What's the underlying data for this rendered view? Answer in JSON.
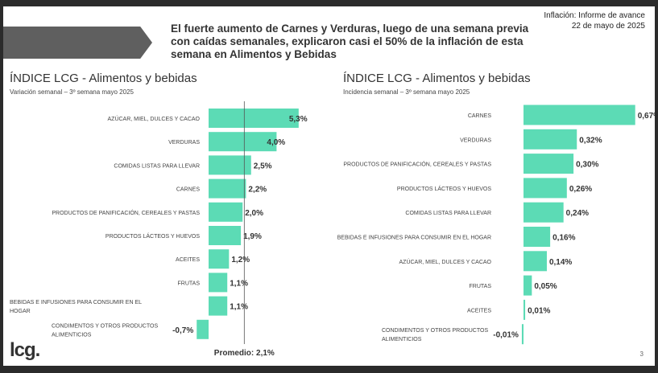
{
  "header": {
    "headline": "El fuerte aumento de Carnes y Verduras, luego de una semana previa con caídas semanales, explicaron casi el 50% de la inflación de esta semana en Alimentos y Bebidas",
    "report_title": "Inflación: Informe de avance",
    "report_date": "22 de mayo de 2025"
  },
  "footer": {
    "logo": "lcg.",
    "page": "3"
  },
  "colors": {
    "bar": "#5cdbb5",
    "arrow": "#5f5f5f",
    "frame": "#2b2b2b"
  },
  "chart_data": [
    {
      "type": "bar",
      "orientation": "horizontal",
      "title": "ÍNDICE LCG - Alimentos y bebidas",
      "subtitle": "Variación semanal – 3º semana mayo 2025",
      "categories": [
        "AZÚCAR, MIEL, DULCES Y CACAO",
        "VERDURAS",
        "COMIDAS LISTAS PARA LLEVAR",
        "CARNES",
        "PRODUCTOS DE PANIFICACIÓN, CEREALES Y PASTAS",
        "PRODUCTOS LÁCTEOS Y HUEVOS",
        "ACEITES",
        "FRUTAS",
        "BEBIDAS E INFUSIONES PARA CONSUMIR EN EL HOGAR",
        "CONDIMENTOS Y OTROS PRODUCTOS ALIMENTICIOS"
      ],
      "values": [
        5.3,
        4.0,
        2.5,
        2.2,
        2.0,
        1.9,
        1.2,
        1.1,
        1.1,
        -0.7
      ],
      "value_labels": [
        "5,3%",
        "4,0%",
        "2,5%",
        "2,2%",
        "2,0%",
        "1,9%",
        "1,2%",
        "1,1%",
        "1,1%",
        "-0,7%"
      ],
      "reference_line": {
        "value": 2.1,
        "label": "Promedio: 2,1%"
      }
    },
    {
      "type": "bar",
      "orientation": "horizontal",
      "title": "ÍNDICE LCG - Alimentos y bebidas",
      "subtitle": "Incidencia semanal – 3º semana mayo 2025",
      "categories": [
        "CARNES",
        "VERDURAS",
        "PRODUCTOS DE PANIFICACIÓN, CEREALES Y PASTAS",
        "PRODUCTOS LÁCTEOS Y HUEVOS",
        "COMIDAS LISTAS PARA LLEVAR",
        "BEBIDAS E INFUSIONES PARA CONSUMIR EN EL HOGAR",
        "AZÚCAR, MIEL, DULCES Y CACAO",
        "FRUTAS",
        "ACEITES",
        "CONDIMENTOS Y OTROS PRODUCTOS ALIMENTICIOS"
      ],
      "values": [
        0.67,
        0.32,
        0.3,
        0.26,
        0.24,
        0.16,
        0.14,
        0.05,
        0.01,
        -0.01
      ],
      "value_labels": [
        "0,67%",
        "0,32%",
        "0,30%",
        "0,26%",
        "0,24%",
        "0,16%",
        "0,14%",
        "0,05%",
        "0,01%",
        "-0,01%"
      ]
    }
  ]
}
